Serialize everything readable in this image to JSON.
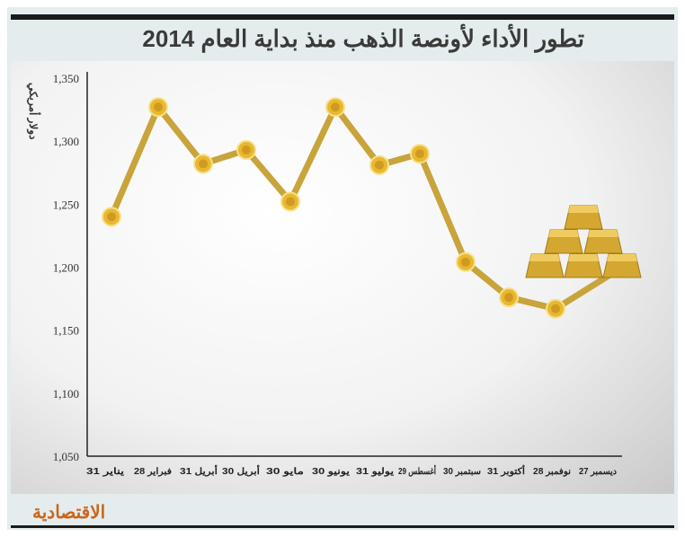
{
  "header": {
    "title": "تطور الأداء لأونصة الذهب منذ بداية العام 2014"
  },
  "footer": {
    "logo": "الاقتصادية"
  },
  "chart_data": {
    "type": "line",
    "title": "تطور الأداء لأونصة الذهب منذ بداية العام 2014",
    "ylabel": "دولار أمريكي",
    "xlabel": "",
    "categories": [
      "31 يناير",
      "28 فبراير",
      "31 أبريل",
      "30 أبريل",
      "30 مايو",
      "30 يونيو",
      "31 يوليو",
      "29 أغسطس",
      "30 سبتمبر",
      "31 أكتوبر",
      "28 نوفمبر",
      "27 ديسمبر"
    ],
    "values": [
      1240,
      1327,
      1282,
      1293,
      1252,
      1327,
      1281,
      1290,
      1204,
      1176,
      1167,
      1199
    ],
    "ylim": [
      1050,
      1350
    ],
    "yticks": [
      1050,
      1100,
      1150,
      1200,
      1250,
      1300,
      1350
    ],
    "ytick_labels": [
      "1,050",
      "1,100",
      "1,150",
      "1,200",
      "1,250",
      "1,300",
      "1,350"
    ],
    "grid": false,
    "colors": {
      "line": "#c8a43a",
      "marker": "#e8b830",
      "bars": "#d4a830"
    }
  }
}
